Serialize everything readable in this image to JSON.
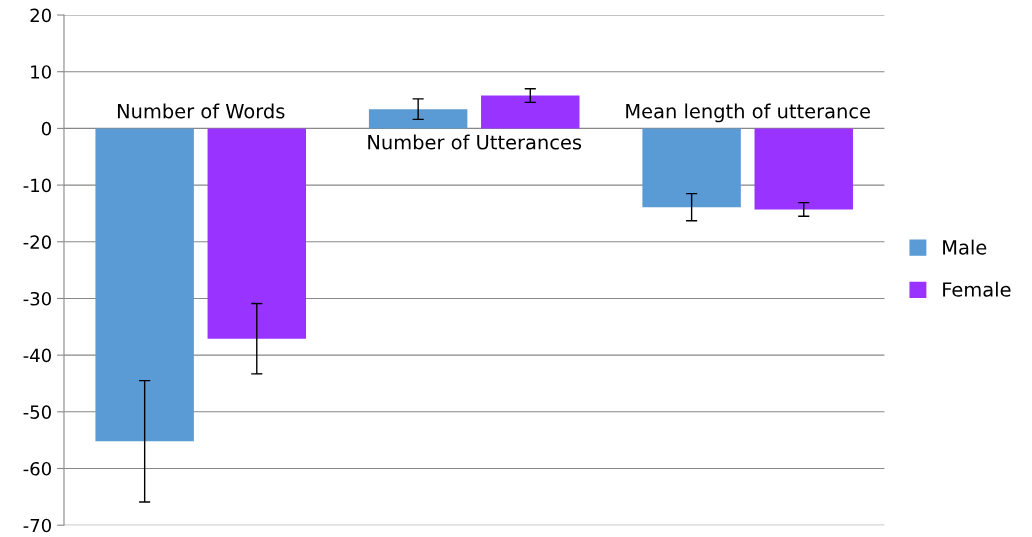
{
  "chart_data": {
    "type": "bar",
    "categories": [
      "Number of Words",
      "Number of Utterances",
      "Mean length of utterance"
    ],
    "series": [
      {
        "name": "Male",
        "color": "#5b9bd5",
        "values": [
          -55.2,
          3.4,
          -13.9
        ],
        "errors": [
          10.7,
          1.8,
          2.4
        ]
      },
      {
        "name": "Female",
        "color": "#9933ff",
        "values": [
          -37.1,
          5.8,
          -14.3
        ],
        "errors": [
          6.2,
          1.2,
          1.2
        ]
      }
    ],
    "ylim": [
      -70,
      20
    ],
    "yticks": [
      -70,
      -60,
      -50,
      -40,
      -30,
      -20,
      -10,
      0,
      10,
      20
    ],
    "grid": "y",
    "legend": "right"
  }
}
